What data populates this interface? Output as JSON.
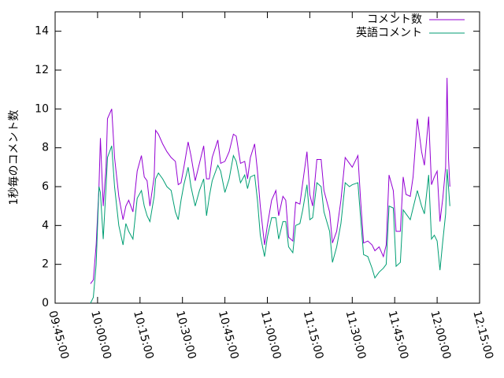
{
  "chart_data": {
    "type": "line",
    "y_label": "1秒毎のコメント数",
    "xlim": [
      "09:45:00",
      "12:15:00"
    ],
    "xticks": [
      "09:45:00",
      "10:00:00",
      "10:15:00",
      "10:30:00",
      "10:45:00",
      "11:00:00",
      "11:15:00",
      "11:30:00",
      "11:45:00",
      "12:00:00",
      "12:15:00"
    ],
    "ylim": [
      0,
      15
    ],
    "yticks": [
      0,
      2,
      4,
      6,
      8,
      10,
      12,
      14
    ],
    "legend": "top-right",
    "x": [
      "09:57:30",
      "09:58:30",
      "09:59:30",
      "10:00:30",
      "10:01:00",
      "10:02:00",
      "10:03:00",
      "10:03:30",
      "10:05:00",
      "10:06:00",
      "10:07:30",
      "10:09:00",
      "10:10:00",
      "10:11:00",
      "10:12:30",
      "10:14:00",
      "10:15:30",
      "10:16:30",
      "10:17:30",
      "10:18:30",
      "10:20:00",
      "10:20:30",
      "10:21:30",
      "10:23:00",
      "10:24:30",
      "10:26:00",
      "10:27:30",
      "10:28:30",
      "10:29:30",
      "10:30:30",
      "10:32:00",
      "10:33:00",
      "10:34:30",
      "10:36:00",
      "10:37:30",
      "10:38:30",
      "10:39:30",
      "10:40:30",
      "10:42:30",
      "10:43:30",
      "10:45:00",
      "10:46:30",
      "10:48:00",
      "10:49:00",
      "10:50:30",
      "10:52:00",
      "10:53:00",
      "10:54:00",
      "10:55:30",
      "10:56:30",
      "10:57:30",
      "10:59:00",
      "11:00:00",
      "11:01:30",
      "11:03:00",
      "11:04:00",
      "11:05:30",
      "11:06:30",
      "11:07:30",
      "11:09:00",
      "11:10:00",
      "11:11:30",
      "11:12:30",
      "11:14:00",
      "11:15:00",
      "11:16:00",
      "11:17:30",
      "11:19:00",
      "11:20:00",
      "11:22:00",
      "11:23:00",
      "11:24:30",
      "11:26:00",
      "11:27:30",
      "11:29:00",
      "11:30:00",
      "11:32:00",
      "11:33:00",
      "11:34:00",
      "11:35:30",
      "11:37:00",
      "11:38:00",
      "11:39:30",
      "11:41:00",
      "11:42:00",
      "11:43:00",
      "11:44:30",
      "11:45:30",
      "11:47:00",
      "11:48:00",
      "11:49:00",
      "11:50:30",
      "11:51:30",
      "11:53:00",
      "11:54:30",
      "11:55:30",
      "11:57:00",
      "11:58:00",
      "11:59:00",
      "12:00:00",
      "12:01:00",
      "12:02:00",
      "12:03:00",
      "12:03:30",
      "12:04:00",
      "12:04:30"
    ],
    "series": [
      {
        "name": "コメント数",
        "color": "#9400d3",
        "values": [
          1.0,
          1.2,
          3,
          6,
          8.5,
          5,
          7,
          9.5,
          10,
          7.5,
          5.5,
          4.3,
          5,
          5.3,
          4.7,
          6.8,
          7.6,
          6.5,
          6.3,
          5,
          6.5,
          8.9,
          8.7,
          8.2,
          7.8,
          7.5,
          7.3,
          6.1,
          6.2,
          7,
          8.3,
          7.6,
          6.3,
          7.2,
          8.1,
          6.4,
          6.4,
          7.5,
          8.4,
          7.2,
          7.3,
          7.8,
          8.7,
          8.6,
          7.2,
          7.3,
          6.4,
          7.5,
          8.2,
          6.8,
          5,
          3,
          4,
          5.3,
          5.8,
          4.5,
          5.5,
          5.3,
          3.4,
          3.2,
          5.2,
          5.1,
          6.2,
          7.8,
          5.6,
          5,
          7.4,
          7.4,
          5.8,
          4.7,
          3.1,
          3.7,
          5.3,
          7.5,
          7.2,
          7,
          7.6,
          5.2,
          3.1,
          3.2,
          3,
          2.7,
          2.9,
          2.4,
          3,
          6.6,
          5.8,
          3.7,
          3.7,
          6.5,
          5.6,
          5.5,
          6.5,
          9.5,
          7.8,
          7.1,
          9.6,
          6.1,
          6.5,
          6.8,
          4.2,
          5.4,
          7,
          11.6,
          7.5,
          6
        ]
      },
      {
        "name": "英語コメント",
        "color": "#009e73",
        "values": [
          0,
          0.3,
          2,
          6,
          5.7,
          3.3,
          6,
          7.5,
          8.1,
          6,
          4,
          3,
          4.1,
          3.7,
          3.3,
          5.4,
          5.8,
          5,
          4.5,
          4.2,
          5.5,
          6.4,
          6.7,
          6.4,
          6,
          5.8,
          4.7,
          4.3,
          5.3,
          6.1,
          7,
          6,
          5,
          5.8,
          6.4,
          4.5,
          5.5,
          6.3,
          7.1,
          6.8,
          5.7,
          6.4,
          7.6,
          7.3,
          6.2,
          6.6,
          5.9,
          6.5,
          6.6,
          5.3,
          3.5,
          2.4,
          3.4,
          4.4,
          4.4,
          3.3,
          4.2,
          4.2,
          2.9,
          2.6,
          4,
          4.1,
          4.8,
          6.1,
          4.3,
          4.4,
          6.2,
          6,
          4.7,
          3.7,
          2.1,
          2.9,
          4.1,
          6.2,
          6,
          6.1,
          6.2,
          4.3,
          2.5,
          2.4,
          1.8,
          1.3,
          1.6,
          1.8,
          2,
          5,
          4.9,
          1.9,
          2.1,
          4.8,
          4.6,
          4.3,
          4.9,
          5.8,
          5,
          4.6,
          6.6,
          3.3,
          3.5,
          3.2,
          1.7,
          3.2,
          4.6,
          6.9,
          6,
          5
        ]
      }
    ]
  }
}
